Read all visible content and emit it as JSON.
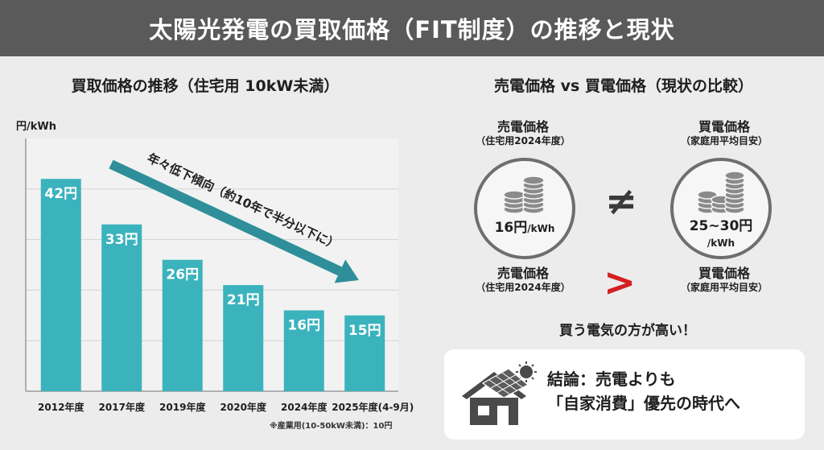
{
  "header": {
    "title": "太陽光発電の買取価格（FIT制度）の推移と現状"
  },
  "chart_data": {
    "type": "bar",
    "title": "買取価格の推移（住宅用 10kW未満）",
    "ylabel": "円/kWh",
    "categories": [
      "2012年度",
      "2017年度",
      "2019年度",
      "2020年度",
      "2024年度",
      "2025年度(4-9月)"
    ],
    "values": [
      42,
      33,
      26,
      21,
      16,
      15
    ],
    "value_labels": [
      "42円",
      "33円",
      "26円",
      "21円",
      "16円",
      "15円"
    ],
    "ylim": [
      0,
      50
    ],
    "grid": true,
    "bar_color": "#3bb3bd",
    "annotation": "年々低下傾向（約10年で半分以下に）",
    "footnote": "※産業用(10-50kW未満)：10円"
  },
  "comparison": {
    "title": "売電価格 vs 買電価格（現状の比較）",
    "sell": {
      "label": "売電価格",
      "sub": "（住宅用2024年度）",
      "amount": "16円",
      "unit": "/kWh"
    },
    "buy": {
      "label": "買電価格",
      "sub": "（家庭用平均目安）",
      "amount": "25~30円",
      "unit": "/kWh"
    },
    "neq_symbol": "≠",
    "gt_symbol": ">",
    "note": "買う電気の方が高い！",
    "conclusion_line1": "結論：売電よりも",
    "conclusion_line2": "「自家消費」優先の時代へ"
  },
  "colors": {
    "accent": "#3bb3bd",
    "header": "#5a5a5a",
    "alert": "#d32020",
    "arrow": "#2e8f9a"
  },
  "icons": [
    "coins-icon",
    "house-solar-icon",
    "sun-icon"
  ]
}
